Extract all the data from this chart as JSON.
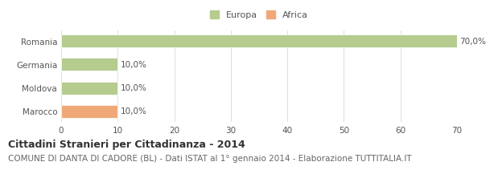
{
  "categories": [
    "Romania",
    "Germania",
    "Moldova",
    "Marocco"
  ],
  "values": [
    70.0,
    10.0,
    10.0,
    10.0
  ],
  "colors": [
    "#b5cc8e",
    "#b5cc8e",
    "#b5cc8e",
    "#f0a878"
  ],
  "labels": [
    "70,0%",
    "10,0%",
    "10,0%",
    "10,0%"
  ],
  "legend": [
    {
      "label": "Europa",
      "color": "#b5cc8e"
    },
    {
      "label": "Africa",
      "color": "#f0a878"
    }
  ],
  "xlim": [
    0,
    70
  ],
  "xticks": [
    0,
    10,
    20,
    30,
    40,
    50,
    60,
    70
  ],
  "title": "Cittadini Stranieri per Cittadinanza - 2014",
  "subtitle": "COMUNE DI DANTA DI CADORE (BL) - Dati ISTAT al 1° gennaio 2014 - Elaborazione TUTTITALIA.IT",
  "bg_color": "#ffffff",
  "bar_edge_color": "#ffffff",
  "title_fontsize": 9,
  "subtitle_fontsize": 7.5,
  "label_fontsize": 7.5,
  "tick_fontsize": 7.5,
  "legend_fontsize": 8
}
